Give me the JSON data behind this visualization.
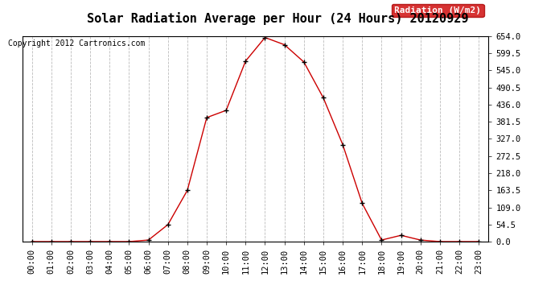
{
  "title": "Solar Radiation Average per Hour (24 Hours) 20120929",
  "copyright": "Copyright 2012 Cartronics.com",
  "legend_label": "Radiation (W/m2)",
  "hours": [
    0,
    1,
    2,
    3,
    4,
    5,
    6,
    7,
    8,
    9,
    10,
    11,
    12,
    13,
    14,
    15,
    16,
    17,
    18,
    19,
    20,
    21,
    22,
    23
  ],
  "values": [
    0,
    0,
    0,
    0,
    0,
    0,
    5,
    54,
    163,
    395,
    418,
    575,
    650,
    627,
    572,
    458,
    309,
    122,
    5,
    20,
    5,
    0,
    0,
    0
  ],
  "line_color": "#cc0000",
  "marker_color": "#000000",
  "bg_color": "#ffffff",
  "grid_color": "#bbbbbb",
  "legend_bg": "#cc0000",
  "legend_text_color": "#ffffff",
  "ylim_min": 0.0,
  "ylim_max": 654.0,
  "ytick_values": [
    0.0,
    54.5,
    109.0,
    163.5,
    218.0,
    272.5,
    327.0,
    381.5,
    436.0,
    490.5,
    545.0,
    599.5,
    654.0
  ],
  "title_fontsize": 11,
  "copyright_fontsize": 7,
  "axis_fontsize": 7.5,
  "legend_fontsize": 8
}
